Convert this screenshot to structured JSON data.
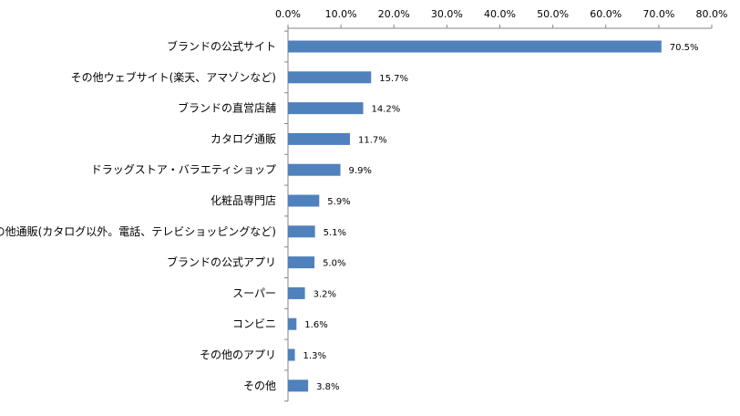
{
  "chart_data": {
    "type": "bar",
    "orientation": "horizontal",
    "categories": [
      "ブランドの公式サイト",
      "その他ウェブサイト(楽天、アマゾンなど)",
      "ブランドの直営店舗",
      "カタログ通販",
      "ドラッグストア・バラエティショップ",
      "化粧品専門店",
      "その他通販(カタログ以外。電話、テレビショッピングなど)",
      "ブランドの公式アプリ",
      "スーパー",
      "コンビニ",
      "その他のアプリ",
      "その他"
    ],
    "values": [
      70.5,
      15.7,
      14.2,
      11.7,
      9.9,
      5.9,
      5.1,
      5.0,
      3.2,
      1.6,
      1.3,
      3.8
    ],
    "value_labels": [
      "70.5%",
      "15.7%",
      "14.2%",
      "11.7%",
      "9.9%",
      "5.9%",
      "5.1%",
      "5.0%",
      "3.2%",
      "1.6%",
      "1.3%",
      "3.8%"
    ],
    "x_ticks": [
      "0.0%",
      "10.0%",
      "20.0%",
      "30.0%",
      "40.0%",
      "50.0%",
      "60.0%",
      "70.0%",
      "80.0%"
    ],
    "xlim": [
      0,
      80
    ],
    "x_axis_position": "top",
    "grid": false,
    "legend": "none",
    "bar_color": "#4f81bd",
    "title": "",
    "xlabel": "",
    "ylabel": ""
  }
}
